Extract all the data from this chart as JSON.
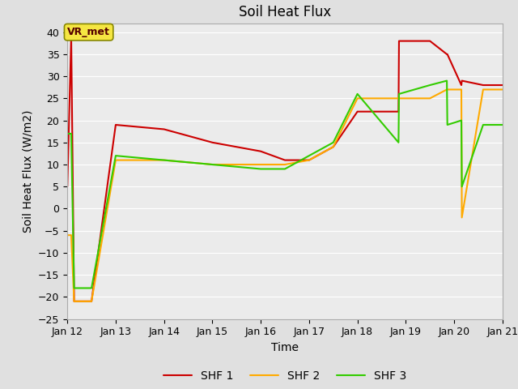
{
  "title": "Soil Heat Flux",
  "xlabel": "Time",
  "ylabel": "Soil Heat Flux (W/m2)",
  "ylim": [
    -25,
    42
  ],
  "yticks": [
    -25,
    -20,
    -15,
    -10,
    -5,
    0,
    5,
    10,
    15,
    20,
    25,
    30,
    35,
    40
  ],
  "background_color": "#e0e0e0",
  "plot_bg_color": "#ebebeb",
  "annotation_text": "VR_met",
  "series": [
    {
      "label": "SHF 1",
      "color": "#cc0000",
      "x": [
        0.0,
        0.08,
        0.14,
        0.5,
        1.0,
        2.0,
        3.0,
        4.0,
        4.5,
        5.0,
        5.5,
        6.0,
        6.85,
        6.86,
        7.5,
        7.85,
        7.86,
        8.15,
        8.16,
        8.6,
        9.0
      ],
      "y": [
        5,
        39,
        -21,
        -21,
        19,
        18,
        15,
        13,
        11,
        11,
        14,
        22,
        22,
        38,
        38,
        35,
        35,
        28,
        29,
        28,
        28
      ]
    },
    {
      "label": "SHF 2",
      "color": "#ffaa00",
      "x": [
        0.0,
        0.08,
        0.14,
        0.5,
        1.0,
        2.0,
        3.0,
        4.0,
        4.5,
        5.0,
        5.5,
        6.0,
        6.85,
        6.86,
        7.5,
        7.85,
        7.86,
        8.15,
        8.16,
        8.6,
        9.0
      ],
      "y": [
        -6,
        -6,
        -21,
        -21,
        11,
        11,
        10,
        10,
        10,
        11,
        14,
        25,
        25,
        25,
        25,
        27,
        27,
        27,
        -2,
        27,
        27
      ]
    },
    {
      "label": "SHF 3",
      "color": "#33cc00",
      "x": [
        0.0,
        0.08,
        0.14,
        0.5,
        1.0,
        2.0,
        3.0,
        4.0,
        4.5,
        5.0,
        5.5,
        6.0,
        6.85,
        6.86,
        7.5,
        7.85,
        7.86,
        8.15,
        8.16,
        8.6,
        9.0
      ],
      "y": [
        17,
        17,
        -18,
        -18,
        12,
        11,
        10,
        9,
        9,
        12,
        15,
        26,
        15,
        26,
        28,
        29,
        19,
        20,
        5,
        19,
        19
      ]
    }
  ],
  "x_tick_labels": [
    "Jan 12",
    "Jan 13",
    "Jan 14",
    "Jan 15",
    "Jan 16",
    "Jan 17",
    "Jan 18",
    "Jan 19",
    "Jan 20",
    "Jan 21"
  ],
  "x_tick_positions": [
    0,
    1,
    2,
    3,
    4,
    5,
    6,
    7,
    8,
    9
  ],
  "grid_color": "#ffffff",
  "line_width": 1.5,
  "title_fontsize": 12,
  "tick_fontsize": 9,
  "label_fontsize": 10,
  "legend_fontsize": 10
}
